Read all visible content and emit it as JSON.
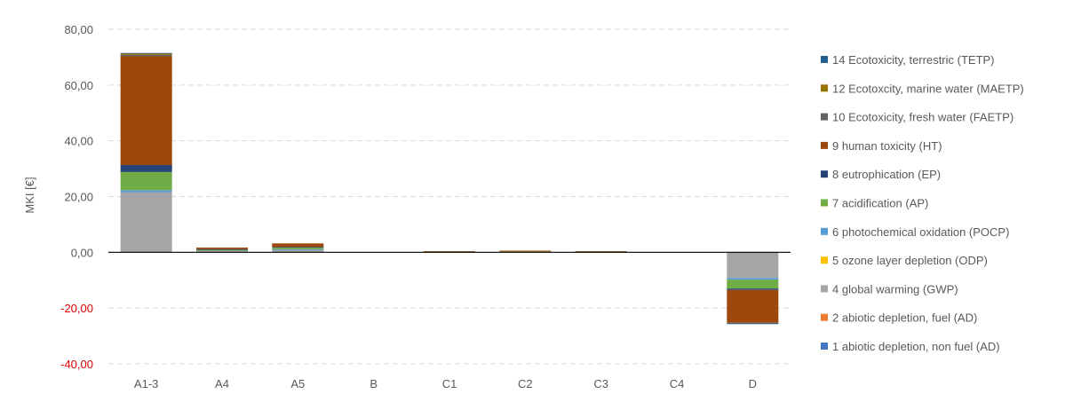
{
  "chart_data": {
    "type": "bar",
    "stacked": true,
    "ylabel": "MKI [€]",
    "xlabel": "",
    "ylim": [
      -40,
      80
    ],
    "ytick_values": [
      -40,
      -20,
      0,
      20,
      40,
      60,
      80
    ],
    "ytick_labels": [
      "-40,00",
      "-20,00",
      "0,00",
      "20,00",
      "40,00",
      "60,00",
      "80,00"
    ],
    "negative_tick_color": "#e00000",
    "grid": true,
    "legend_position": "right",
    "categories": [
      "A1-3",
      "A4",
      "A5",
      "B",
      "C1",
      "C2",
      "C3",
      "C4",
      "D"
    ],
    "series": [
      {
        "name": "1 abiotic depletion, non fuel (AD)",
        "color": "#4472c4",
        "values": [
          0,
          0,
          0,
          0,
          0,
          0,
          0,
          0,
          -0.2
        ]
      },
      {
        "name": "2 abiotic depletion, fuel (AD)",
        "color": "#ed7d31",
        "values": [
          0,
          0,
          0,
          0,
          0,
          0,
          0,
          0,
          0
        ]
      },
      {
        "name": "4 global warming (GWP)",
        "color": "#a5a5a5",
        "values": [
          21.5,
          0.6,
          1.0,
          0,
          0.2,
          0.2,
          0.2,
          0,
          -9.0
        ]
      },
      {
        "name": "5 ozone layer depletion (ODP)",
        "color": "#ffc000",
        "values": [
          0,
          0,
          0,
          0,
          0,
          0,
          0,
          0,
          0
        ]
      },
      {
        "name": "6 photochemical oxidation (POCP)",
        "color": "#5b9bd5",
        "values": [
          0.8,
          0,
          0.1,
          0,
          0,
          0,
          0,
          0,
          -0.6
        ]
      },
      {
        "name": "7 acidification (AP)",
        "color": "#70ad47",
        "values": [
          6.5,
          0.4,
          0.6,
          0,
          0.1,
          0.1,
          0.1,
          0,
          -3.2
        ]
      },
      {
        "name": "8 eutrophication (EP)",
        "color": "#264478",
        "values": [
          2.5,
          0.1,
          0.2,
          0,
          0,
          0,
          0,
          0,
          -0.5
        ]
      },
      {
        "name": "9 human toxicity (HT)",
        "color": "#9e480e",
        "values": [
          39.0,
          0.6,
          1.3,
          0,
          0.1,
          0.3,
          0.1,
          0,
          -11.8
        ]
      },
      {
        "name": "10 Ecotoxicity, fresh water (FAETP)",
        "color": "#636363",
        "values": [
          0.5,
          0,
          0,
          0,
          0,
          0,
          0,
          0,
          -0.2
        ]
      },
      {
        "name": "12 Ecotoxcity, marine water (MAETP)",
        "color": "#997300",
        "values": [
          0.6,
          0,
          0,
          0,
          0,
          0,
          0,
          0,
          0
        ]
      },
      {
        "name": "14 Ecotoxicity, terrestric (TETP)",
        "color": "#255e91",
        "values": [
          0.1,
          0,
          0,
          0,
          0,
          0,
          0,
          0,
          -0.1
        ]
      }
    ]
  }
}
